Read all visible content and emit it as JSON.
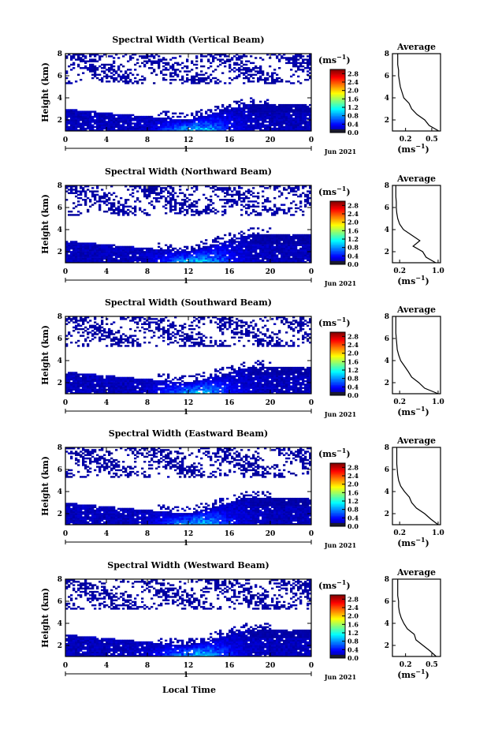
{
  "figure": {
    "xlabel": "Local Time",
    "date_label": "Jun 2021",
    "colorbar_unit": "(ms",
    "colorbar_unit_exp": "−1",
    "colorbar_unit_close": ")",
    "avg_xunit": "(ms",
    "avg_xunit_exp": "−1",
    "avg_xunit_close": ")"
  },
  "chart_data": [
    {
      "type": "heatmap",
      "title": "Spectral Width (Vertical Beam)",
      "ylabel": "Height (km)",
      "xlabel": "Local Time",
      "x_ticks": [
        "0",
        "4",
        "8",
        "12",
        "16",
        "20",
        "0"
      ],
      "day_marker": "1",
      "y_ticks": [
        "2",
        "4",
        "6",
        "8"
      ],
      "xlim": [
        0,
        24
      ],
      "ylim": [
        1,
        8
      ],
      "colorbar_ticks": [
        "0.0",
        "0.4",
        "0.8",
        "1.2",
        "1.6",
        "2.0",
        "2.4",
        "2.8"
      ],
      "colorbar_range": [
        0,
        3
      ],
      "average_profile": {
        "title": "Average",
        "x_ticks": [
          "0.2",
          "0.5"
        ],
        "y_ticks": [
          "2",
          "4",
          "6",
          "8"
        ],
        "xlim": [
          0.05,
          0.6
        ],
        "heights": [
          1.0,
          1.5,
          2.0,
          2.5,
          3.0,
          3.5,
          4.0,
          4.5,
          5.0,
          5.5,
          6.0,
          6.5,
          7.0,
          7.5,
          8.0
        ],
        "values": [
          0.58,
          0.47,
          0.42,
          0.33,
          0.27,
          0.24,
          0.18,
          0.16,
          0.14,
          0.13,
          0.12,
          0.12,
          0.11,
          0.11,
          0.11
        ]
      },
      "description_values": {
        "boundary_layer_top_km": [
          3.0,
          2.0,
          3.5
        ],
        "peak_width_time_h": 12.8
      }
    },
    {
      "type": "heatmap",
      "title": "Spectral Width (Northward Beam)",
      "ylabel": "Height (km)",
      "xlabel": "Local Time",
      "x_ticks": [
        "0",
        "4",
        "8",
        "12",
        "16",
        "20",
        "0"
      ],
      "day_marker": "1",
      "y_ticks": [
        "2",
        "4",
        "6",
        "8"
      ],
      "xlim": [
        0,
        24
      ],
      "ylim": [
        1,
        8
      ],
      "colorbar_ticks": [
        "0.0",
        "0.4",
        "0.8",
        "1.2",
        "1.6",
        "2.0",
        "2.4",
        "2.8"
      ],
      "colorbar_range": [
        0,
        3
      ],
      "average_profile": {
        "title": "Average",
        "x_ticks": [
          "0.2",
          "1.0"
        ],
        "y_ticks": [
          "2",
          "4",
          "6",
          "8"
        ],
        "xlim": [
          0.05,
          1.05
        ],
        "heights": [
          1.0,
          1.5,
          2.0,
          2.5,
          3.0,
          3.5,
          4.0,
          4.5,
          5.0,
          5.5,
          6.0,
          6.5,
          7.0,
          7.5,
          8.0
        ],
        "values": [
          0.95,
          0.75,
          0.68,
          0.48,
          0.62,
          0.45,
          0.28,
          0.2,
          0.16,
          0.14,
          0.13,
          0.13,
          0.12,
          0.12,
          0.12
        ]
      },
      "description_values": {
        "boundary_layer_top_km": [
          3.0,
          2.0,
          3.6
        ],
        "peak_width_time_h": 12.8
      }
    },
    {
      "type": "heatmap",
      "title": "Spectral Width (Southward Beam)",
      "ylabel": "Height (km)",
      "xlabel": "Local Time",
      "x_ticks": [
        "0",
        "4",
        "8",
        "12",
        "16",
        "20",
        "0"
      ],
      "day_marker": "1",
      "y_ticks": [
        "2",
        "4",
        "6",
        "8"
      ],
      "xlim": [
        0,
        24
      ],
      "ylim": [
        1,
        8
      ],
      "colorbar_ticks": [
        "0.0",
        "0.4",
        "0.8",
        "1.2",
        "1.6",
        "2.0",
        "2.4",
        "2.8"
      ],
      "colorbar_range": [
        0,
        3
      ],
      "average_profile": {
        "title": "Average",
        "x_ticks": [
          "0.2",
          "1.0"
        ],
        "y_ticks": [
          "2",
          "4",
          "6",
          "8"
        ],
        "xlim": [
          0.05,
          1.05
        ],
        "heights": [
          1.0,
          1.5,
          2.0,
          2.5,
          3.0,
          3.5,
          4.0,
          4.5,
          5.0,
          5.5,
          6.0,
          6.5,
          7.0,
          7.5,
          8.0
        ],
        "values": [
          1.0,
          0.72,
          0.6,
          0.45,
          0.38,
          0.3,
          0.22,
          0.18,
          0.15,
          0.14,
          0.13,
          0.12,
          0.12,
          0.12,
          0.12
        ]
      },
      "description_values": {
        "boundary_layer_top_km": [
          3.0,
          2.0,
          3.4
        ],
        "peak_width_time_h": 12.8
      }
    },
    {
      "type": "heatmap",
      "title": "Spectral Width (Eastward Beam)",
      "ylabel": "Height (km)",
      "xlabel": "Local Time",
      "x_ticks": [
        "0",
        "4",
        "8",
        "12",
        "16",
        "20",
        "0"
      ],
      "day_marker": "1",
      "y_ticks": [
        "2",
        "4",
        "6",
        "8"
      ],
      "xlim": [
        0,
        24
      ],
      "ylim": [
        1,
        8
      ],
      "colorbar_ticks": [
        "0.0",
        "0.4",
        "0.8",
        "1.2",
        "1.6",
        "2.0",
        "2.4",
        "2.8"
      ],
      "colorbar_range": [
        0,
        3
      ],
      "average_profile": {
        "title": "Average",
        "x_ticks": [
          "0.2",
          "1.0"
        ],
        "y_ticks": [
          "2",
          "4",
          "6",
          "8"
        ],
        "xlim": [
          0.05,
          1.05
        ],
        "heights": [
          1.0,
          1.5,
          2.0,
          2.5,
          3.0,
          3.5,
          4.0,
          4.5,
          5.0,
          5.5,
          6.0,
          6.5,
          7.0,
          7.5,
          8.0
        ],
        "values": [
          1.0,
          0.85,
          0.72,
          0.55,
          0.45,
          0.4,
          0.3,
          0.22,
          0.18,
          0.16,
          0.15,
          0.14,
          0.14,
          0.14,
          0.14
        ]
      },
      "description_values": {
        "boundary_layer_top_km": [
          3.0,
          2.0,
          3.5
        ],
        "peak_width_time_h": 12.8
      }
    },
    {
      "type": "heatmap",
      "title": "Spectral Width (Westward Beam)",
      "ylabel": "Height (km)",
      "xlabel": "Local Time",
      "x_ticks": [
        "0",
        "4",
        "8",
        "12",
        "16",
        "20",
        "0"
      ],
      "day_marker": "1",
      "y_ticks": [
        "2",
        "4",
        "6",
        "8"
      ],
      "xlim": [
        0,
        24
      ],
      "ylim": [
        1,
        8
      ],
      "colorbar_ticks": [
        "0.0",
        "0.4",
        "0.8",
        "1.2",
        "1.6",
        "2.0",
        "2.4",
        "2.8"
      ],
      "colorbar_range": [
        0,
        3
      ],
      "average_profile": {
        "title": "Average",
        "x_ticks": [
          "0.2",
          "0.5"
        ],
        "y_ticks": [
          "2",
          "4",
          "6",
          "8"
        ],
        "xlim": [
          0.05,
          0.6
        ],
        "heights": [
          1.0,
          1.5,
          2.0,
          2.5,
          3.0,
          3.5,
          4.0,
          4.5,
          5.0,
          5.5,
          6.0,
          6.5,
          7.0,
          7.5,
          8.0
        ],
        "values": [
          0.55,
          0.48,
          0.4,
          0.32,
          0.3,
          0.22,
          0.18,
          0.15,
          0.13,
          0.12,
          0.12,
          0.11,
          0.11,
          0.11,
          0.11
        ]
      },
      "description_values": {
        "boundary_layer_top_km": [
          3.0,
          2.0,
          3.5
        ],
        "peak_width_time_h": 12.8
      }
    }
  ]
}
